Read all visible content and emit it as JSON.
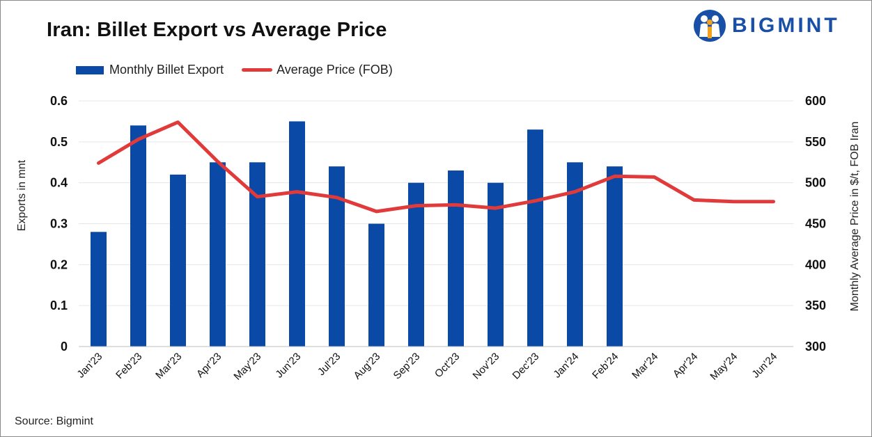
{
  "title": "Iran: Billet Export vs Average Price",
  "brand": {
    "name": "BIGMINT",
    "icon": "people-logo-icon",
    "color": "#1a4fa8"
  },
  "legend": {
    "bar_label": "Monthly Billet Export",
    "line_label": "Average Price (FOB)"
  },
  "source": "Source: Bigmint",
  "colors": {
    "bar": "#0a4aa6",
    "line": "#e03a3a",
    "grid": "#e6e6e6"
  },
  "chart_data": {
    "type": "bar",
    "title": "Iran: Billet Export vs Average Price",
    "categories": [
      "Jan'23",
      "Feb'23",
      "Mar'23",
      "Apr'23",
      "May'23",
      "Jun'23",
      "Jul'23",
      "Aug'23",
      "Sep'23",
      "Oct'23",
      "Nov'23",
      "Dec'23",
      "Jan'24",
      "Feb'24",
      "Mar'24",
      "Apr'24",
      "May'24",
      "Jun'24"
    ],
    "series": [
      {
        "name": "Monthly Billet Export",
        "type": "bar",
        "axis": "left",
        "values": [
          0.28,
          0.54,
          0.42,
          0.45,
          0.45,
          0.55,
          0.44,
          0.3,
          0.4,
          0.43,
          0.4,
          0.53,
          0.45,
          0.44,
          null,
          null,
          null,
          null
        ]
      },
      {
        "name": "Average Price (FOB)",
        "type": "line",
        "axis": "right",
        "values": [
          524,
          553,
          574,
          526,
          483,
          489,
          482,
          465,
          472,
          473,
          469,
          478,
          489,
          508,
          507,
          479,
          477,
          477
        ]
      }
    ],
    "ylabel": "Exports in mnt",
    "ylabel_right": "Monthly Average Price in $/t, FOB Iran",
    "ylim": [
      0,
      0.6
    ],
    "ylim_right": [
      300,
      600
    ],
    "yticks": [
      "0",
      "0.1",
      "0.2",
      "0.3",
      "0.4",
      "0.5",
      "0.6"
    ],
    "yticks_right": [
      "300",
      "350",
      "400",
      "450",
      "500",
      "550",
      "600"
    ],
    "grid": true,
    "legend_position": "top-left"
  }
}
